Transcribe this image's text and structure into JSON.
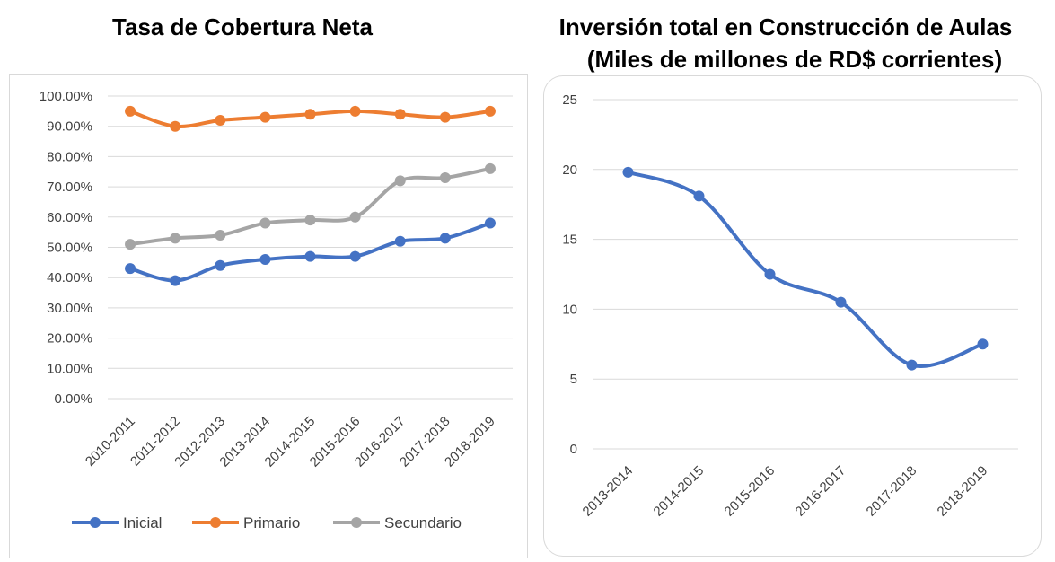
{
  "chart_data": [
    {
      "type": "line",
      "title": "Tasa de Cobertura Neta",
      "categories": [
        "2010-2011",
        "2011-2012",
        "2012-2013",
        "2013-2014",
        "2014-2015",
        "2015-2016",
        "2016-2017",
        "2017-2018",
        "2018-2019"
      ],
      "y_ticks": [
        "0.00%",
        "10.00%",
        "20.00%",
        "30.00%",
        "40.00%",
        "50.00%",
        "60.00%",
        "70.00%",
        "80.00%",
        "90.00%",
        "100.00%"
      ],
      "ylim": [
        0,
        100
      ],
      "grid": true,
      "legend_position": "bottom",
      "series": [
        {
          "name": "Inicial",
          "color": "#4472C4",
          "values": [
            43,
            39,
            44,
            46,
            47,
            47,
            52,
            53,
            58
          ]
        },
        {
          "name": "Primario",
          "color": "#ED7D31",
          "values": [
            95,
            90,
            92,
            93,
            94,
            95,
            94,
            93,
            95
          ]
        },
        {
          "name": "Secundario",
          "color": "#A5A5A5",
          "values": [
            51,
            53,
            54,
            58,
            59,
            60,
            72,
            73,
            76
          ]
        }
      ]
    },
    {
      "type": "line",
      "title": "Inversión total en Construcción de Aulas",
      "subtitle": "(Miles de millones de RD$ corrientes)",
      "categories": [
        "2013-2014",
        "2014-2015",
        "2015-2016",
        "2016-2017",
        "2017-2018",
        "2018-2019"
      ],
      "y_ticks": [
        "0",
        "5",
        "10",
        "15",
        "20",
        "25"
      ],
      "ylim": [
        0,
        25
      ],
      "grid": true,
      "series": [
        {
          "color": "#4472C4",
          "values": [
            19.8,
            18.1,
            12.5,
            10.5,
            6.0,
            7.5
          ]
        }
      ]
    }
  ]
}
